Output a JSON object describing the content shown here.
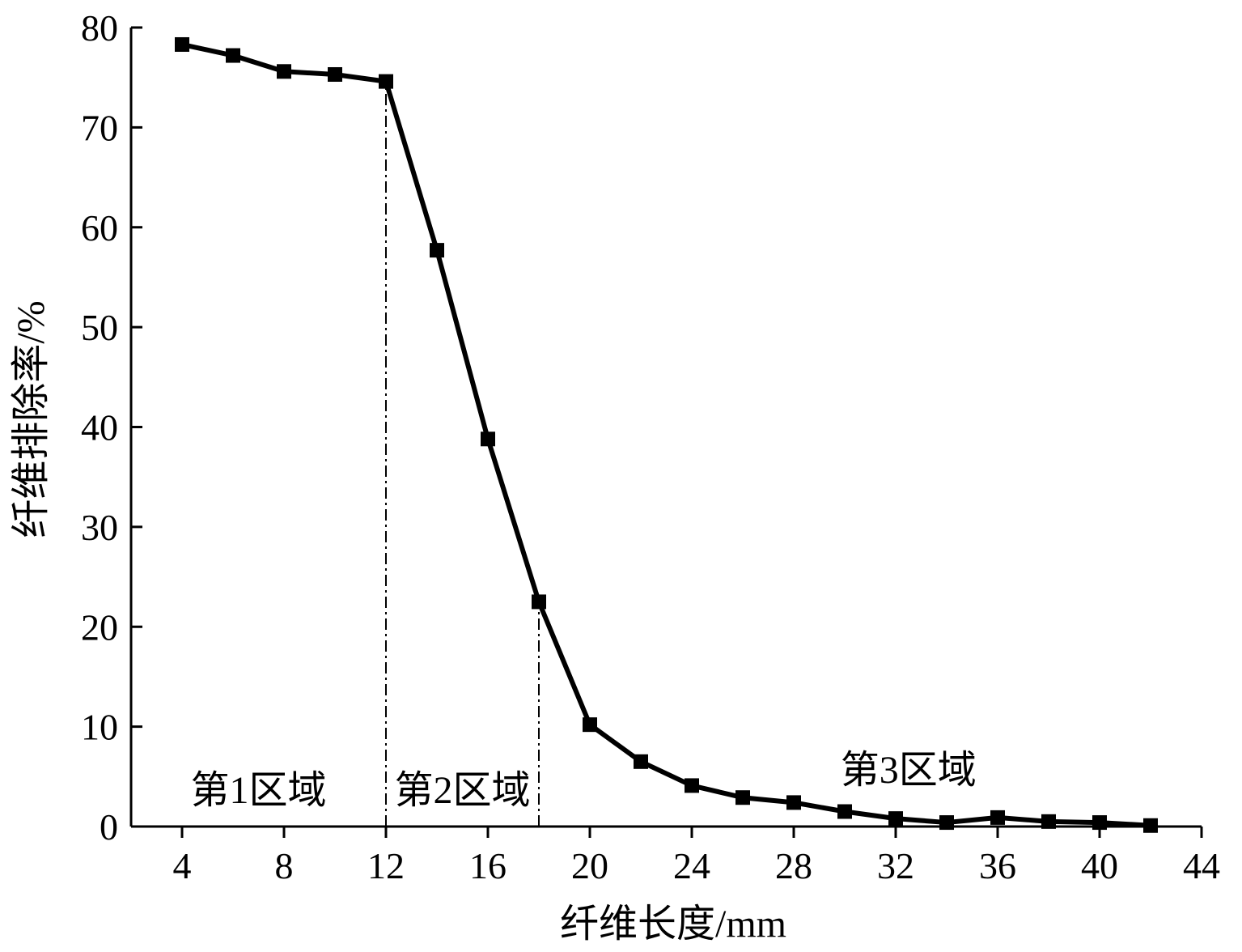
{
  "chart_data": {
    "type": "line",
    "xlabel": "纤维长度/mm",
    "ylabel": "纤维排除率/%",
    "xlim": [
      2,
      44
    ],
    "ylim": [
      0,
      80
    ],
    "x_ticks": [
      4,
      8,
      12,
      16,
      20,
      24,
      28,
      32,
      36,
      40,
      44
    ],
    "y_ticks": [
      0,
      10,
      20,
      30,
      40,
      50,
      60,
      70,
      80
    ],
    "grid": false,
    "series": [
      {
        "marker": "square",
        "color": "#000000",
        "x": [
          4,
          6,
          8,
          10,
          12,
          14,
          16,
          18,
          20,
          22,
          24,
          26,
          28,
          30,
          32,
          34,
          36,
          38,
          40,
          42
        ],
        "y": [
          78.3,
          77.2,
          75.6,
          75.3,
          74.6,
          57.7,
          38.8,
          22.5,
          10.2,
          6.5,
          4.1,
          2.9,
          2.4,
          1.5,
          0.8,
          0.4,
          0.9,
          0.5,
          0.4,
          0.1
        ]
      }
    ],
    "reference_lines": [
      {
        "x": 12,
        "style": "dash-dot"
      },
      {
        "x": 18,
        "style": "dash-dot"
      }
    ],
    "annotations": [
      {
        "text": "第1区域",
        "x": 7
      },
      {
        "text": "第2区域",
        "x": 15
      },
      {
        "text": "第3区域",
        "x": 32.5
      }
    ]
  }
}
